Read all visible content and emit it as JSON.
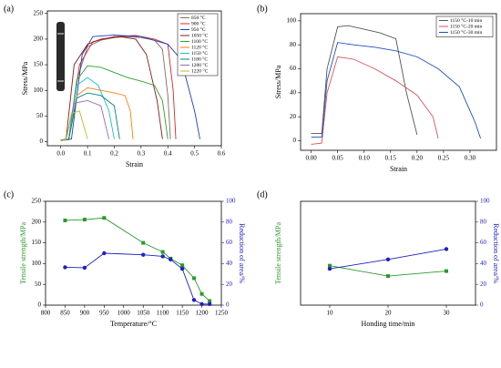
{
  "chart_data": [
    {
      "type": "line",
      "panel_label": "(a)",
      "xlabel": "Strain",
      "ylabel": "Stress/MPa",
      "xlim": [
        -0.05,
        0.6
      ],
      "ylim": [
        -8,
        255
      ],
      "xticks": [
        {
          "value": 0,
          "label": "0.0"
        },
        0.1,
        0.2,
        0.3,
        0.4,
        0.5,
        0.6
      ],
      "yticks": [
        0,
        50,
        100,
        150,
        200,
        250
      ],
      "legend": "upper right",
      "series": [
        {
          "name": "850 °C",
          "color": "#7f6f5f",
          "x": [
            0,
            0.03,
            0.06,
            0.1,
            0.15,
            0.2,
            0.25,
            0.3,
            0.35,
            0.38,
            0.4,
            0.41
          ],
          "values": [
            3,
            5,
            120,
            185,
            198,
            203,
            205,
            203,
            198,
            180,
            90,
            5
          ]
        },
        {
          "name": "900 °C",
          "color": "#d62728",
          "x": [
            0,
            0.03,
            0.07,
            0.12,
            0.2,
            0.28,
            0.35,
            0.4,
            0.42,
            0.43
          ],
          "values": [
            2,
            4,
            150,
            195,
            205,
            207,
            200,
            190,
            100,
            5
          ]
        },
        {
          "name": "950 °C",
          "color": "#1f3fbf",
          "x": [
            0,
            0.04,
            0.08,
            0.12,
            0.2,
            0.3,
            0.4,
            0.45,
            0.5,
            0.52
          ],
          "values": [
            3,
            5,
            170,
            205,
            208,
            205,
            190,
            160,
            60,
            5
          ]
        },
        {
          "name": "1050 °C",
          "color": "#8b1a1a",
          "x": [
            0,
            0.02,
            0.05,
            0.1,
            0.15,
            0.22,
            0.28,
            0.32,
            0.36,
            0.38
          ],
          "values": [
            3,
            5,
            150,
            190,
            200,
            205,
            200,
            170,
            80,
            5
          ]
        },
        {
          "name": "1100 °C",
          "color": "#2ca02c",
          "x": [
            0,
            0.03,
            0.06,
            0.1,
            0.15,
            0.2,
            0.25,
            0.3,
            0.35,
            0.38,
            0.4
          ],
          "values": [
            3,
            5,
            120,
            148,
            145,
            135,
            125,
            118,
            110,
            80,
            5
          ]
        },
        {
          "name": "1120 °C",
          "color": "#ff7f0e",
          "x": [
            0,
            0.03,
            0.06,
            0.1,
            0.15,
            0.2,
            0.24,
            0.26,
            0.27
          ],
          "values": [
            2,
            4,
            90,
            105,
            100,
            95,
            90,
            60,
            5
          ]
        },
        {
          "name": "1150 °C",
          "color": "#17becf",
          "x": [
            0,
            0.03,
            0.06,
            0.1,
            0.14,
            0.18,
            0.2
          ],
          "values": [
            3,
            5,
            110,
            125,
            110,
            60,
            5
          ]
        },
        {
          "name": "1180 °C",
          "color": "#008080",
          "x": [
            0,
            0.03,
            0.06,
            0.1,
            0.15,
            0.2,
            0.22
          ],
          "values": [
            2,
            4,
            85,
            95,
            90,
            70,
            5
          ]
        },
        {
          "name": "1200 °C",
          "color": "#9467bd",
          "x": [
            0,
            0.02,
            0.05,
            0.1,
            0.15,
            0.18
          ],
          "values": [
            2,
            4,
            75,
            80,
            70,
            5
          ]
        },
        {
          "name": "1220 °C",
          "color": "#bcbd22",
          "x": [
            0,
            0.02,
            0.04,
            0.07,
            0.1
          ],
          "values": [
            2,
            3,
            55,
            60,
            5
          ]
        }
      ]
    },
    {
      "type": "line",
      "panel_label": "(b)",
      "xlabel": "Strain",
      "ylabel": "Stress/MPa",
      "xlim": [
        -0.02,
        0.35
      ],
      "ylim": [
        -8,
        106
      ],
      "xticks": [
        {
          "value": 0,
          "label": "0.00"
        },
        0.05,
        {
          "value": 0.1,
          "label": "0.10"
        },
        0.15,
        {
          "value": 0.2,
          "label": "0.20"
        },
        0.25,
        {
          "value": 0.3,
          "label": "0.30"
        }
      ],
      "yticks": [
        0,
        20,
        40,
        60,
        80,
        100
      ],
      "legend": "upper right",
      "series": [
        {
          "name": "1150 °C-10 min",
          "color": "#555555",
          "x": [
            0,
            0.02,
            0.03,
            0.05,
            0.07,
            0.1,
            0.13,
            0.16,
            0.18,
            0.2
          ],
          "values": [
            6,
            6,
            60,
            95,
            96,
            93,
            90,
            85,
            40,
            5
          ]
        },
        {
          "name": "1150 °C-20 min",
          "color": "#e0505a",
          "x": [
            0,
            0.02,
            0.03,
            0.05,
            0.08,
            0.12,
            0.16,
            0.2,
            0.23,
            0.24
          ],
          "values": [
            -3,
            -2,
            40,
            70,
            68,
            60,
            50,
            38,
            20,
            2
          ]
        },
        {
          "name": "1150 °C-30 min",
          "color": "#2050c0",
          "x": [
            0,
            0.02,
            0.03,
            0.05,
            0.08,
            0.12,
            0.16,
            0.2,
            0.24,
            0.28,
            0.31,
            0.32
          ],
          "values": [
            3,
            3,
            50,
            82,
            80,
            78,
            75,
            70,
            60,
            45,
            15,
            2
          ]
        }
      ]
    },
    {
      "type": "line",
      "panel_label": "(c)",
      "xlabel": "Temperature/°C",
      "ylabel": "Tensile strength/MPa",
      "y2label": "Reduction of area/%",
      "ylabel_color": "#2a9a2a",
      "y2label_color": "#2020c0",
      "xlim": [
        800,
        1250
      ],
      "ylim": [
        0,
        250
      ],
      "y2lim": [
        0,
        100
      ],
      "xticks": [
        800,
        850,
        900,
        950,
        1000,
        1050,
        1100,
        1150,
        1200,
        1250
      ],
      "yticks": [
        0,
        50,
        100,
        150,
        200,
        250
      ],
      "y2ticks": [
        0,
        20,
        40,
        60,
        80,
        100
      ],
      "x": [
        850,
        900,
        950,
        1050,
        1100,
        1120,
        1150,
        1180,
        1200,
        1220
      ],
      "series": [
        {
          "color": "#2a9a2a",
          "marker": "square",
          "values": [
            204,
            206,
            210,
            150,
            128,
            112,
            96,
            65,
            27,
            10
          ]
        },
        {
          "color": "#2020c0",
          "marker": "circle",
          "axis": "y2",
          "values": [
            36.5,
            36,
            50,
            48.5,
            47,
            44,
            35,
            5,
            1,
            1
          ]
        }
      ]
    },
    {
      "type": "line",
      "panel_label": "(d)",
      "xlabel": "Honding time/min",
      "ylabel": "Tensile strength/MPa",
      "y2label": "Reduction of area/%",
      "ylabel_color": "#2a9a2a",
      "y2label_color": "#2020c0",
      "xlim": [
        5,
        35
      ],
      "ylim": [
        0,
        250
      ],
      "y2lim": [
        0,
        100
      ],
      "xticks": [
        10,
        20,
        30
      ],
      "yticks": [],
      "y2ticks": [
        0,
        20,
        40,
        60,
        80,
        100
      ],
      "x": [
        10,
        20,
        30
      ],
      "series": [
        {
          "color": "#2a9a2a",
          "marker": "square",
          "values": [
            95,
            70,
            82
          ]
        },
        {
          "color": "#2020c0",
          "marker": "circle",
          "axis": "y2",
          "values": [
            35,
            44,
            54
          ]
        }
      ]
    }
  ]
}
